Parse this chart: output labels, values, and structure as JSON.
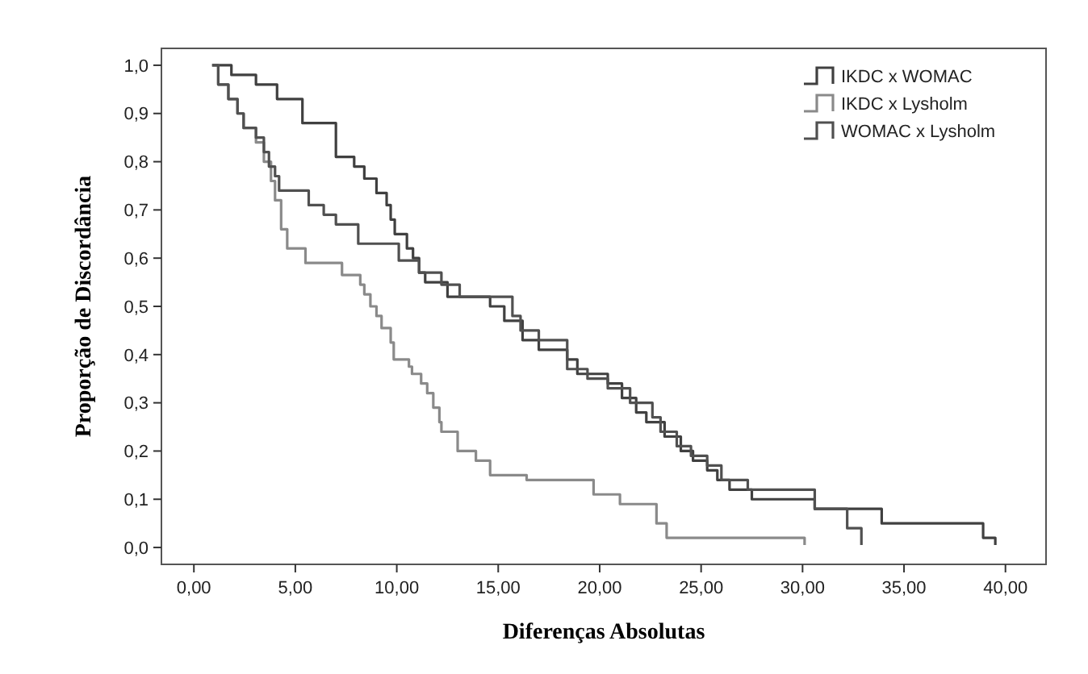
{
  "chart_data": {
    "type": "step",
    "xlabel": "Diferenças Absolutas",
    "ylabel": "Proporção de Discordância",
    "xlim": [
      -1.6,
      42
    ],
    "ylim": [
      -0.035,
      1.035
    ],
    "xticks": [
      {
        "value": 0,
        "label": "0,00"
      },
      {
        "value": 5,
        "label": "5,00"
      },
      {
        "value": 10,
        "label": "10,00"
      },
      {
        "value": 15,
        "label": "15,00"
      },
      {
        "value": 20,
        "label": "20,00"
      },
      {
        "value": 25,
        "label": "25,00"
      },
      {
        "value": 30,
        "label": "30,00"
      },
      {
        "value": 35,
        "label": "35,00"
      },
      {
        "value": 40,
        "label": "40,00"
      }
    ],
    "yticks": [
      {
        "value": 0,
        "label": "0,0"
      },
      {
        "value": 0.1,
        "label": "0,1"
      },
      {
        "value": 0.2,
        "label": "0,2"
      },
      {
        "value": 0.3,
        "label": "0,3"
      },
      {
        "value": 0.4,
        "label": "0,4"
      },
      {
        "value": 0.5,
        "label": "0,5"
      },
      {
        "value": 0.6,
        "label": "0,6"
      },
      {
        "value": 0.7,
        "label": "0,7"
      },
      {
        "value": 0.8,
        "label": "0,8"
      },
      {
        "value": 0.9,
        "label": "0,9"
      },
      {
        "value": 1,
        "label": "1,0"
      }
    ],
    "grid": false,
    "legend": "top right",
    "line_style": "solid",
    "marker": "none",
    "series": [
      {
        "name": "IKDC x WOMAC",
        "color": "#404040",
        "x": [
          0.9,
          1.85,
          3.06,
          4.1,
          5.35,
          7.0,
          7.9,
          8.4,
          9.0,
          9.5,
          9.7,
          9.9,
          10.5,
          10.8,
          11.1,
          11.4,
          12.5,
          14.6,
          15.3,
          16.2,
          17.0,
          18.4,
          18.9,
          20.4,
          21.1,
          21.8,
          22.3,
          23.2,
          24.0,
          24.6,
          25.3,
          25.8,
          26.4,
          27.5,
          30.6,
          33.9,
          38.9,
          39.5
        ],
        "values": [
          1.0,
          0.98,
          0.96,
          0.93,
          0.88,
          0.81,
          0.79,
          0.765,
          0.735,
          0.71,
          0.68,
          0.65,
          0.62,
          0.6,
          0.57,
          0.55,
          0.52,
          0.5,
          0.47,
          0.43,
          0.41,
          0.39,
          0.36,
          0.34,
          0.31,
          0.28,
          0.26,
          0.23,
          0.2,
          0.18,
          0.16,
          0.14,
          0.12,
          0.1,
          0.08,
          0.05,
          0.02,
          0.005
        ]
      },
      {
        "name": "IKDC x Lysholm",
        "color": "#8a8a8a",
        "x": [
          0.9,
          1.2,
          1.7,
          2.15,
          2.45,
          3.06,
          3.45,
          3.8,
          4.0,
          4.3,
          4.6,
          5.5,
          7.3,
          8.2,
          8.4,
          8.7,
          9.0,
          9.25,
          9.7,
          9.85,
          10.6,
          10.75,
          11.2,
          11.5,
          11.8,
          12.1,
          12.2,
          13.0,
          13.9,
          14.6,
          16.4,
          19.7,
          21.0,
          22.8,
          23.3,
          30.1
        ],
        "values": [
          1.0,
          0.96,
          0.93,
          0.9,
          0.87,
          0.84,
          0.8,
          0.76,
          0.72,
          0.66,
          0.62,
          0.59,
          0.565,
          0.545,
          0.525,
          0.5,
          0.48,
          0.455,
          0.425,
          0.39,
          0.375,
          0.36,
          0.34,
          0.32,
          0.29,
          0.26,
          0.24,
          0.2,
          0.18,
          0.15,
          0.14,
          0.11,
          0.09,
          0.05,
          0.02,
          0.005
        ]
      },
      {
        "name": "WOMAC x Lysholm",
        "color": "#505050",
        "x": [
          0.9,
          1.2,
          1.7,
          2.15,
          2.45,
          3.06,
          3.45,
          3.7,
          4.0,
          4.2,
          5.66,
          6.4,
          7.0,
          8.1,
          10.1,
          11.1,
          12.2,
          13.1,
          15.7,
          16.1,
          17.0,
          18.4,
          19.4,
          20.4,
          21.5,
          22.6,
          23.0,
          23.8,
          24.5,
          25.3,
          26.0,
          27.3,
          30.6,
          32.2,
          32.9
        ],
        "values": [
          1.0,
          0.96,
          0.93,
          0.9,
          0.87,
          0.85,
          0.82,
          0.79,
          0.77,
          0.74,
          0.71,
          0.69,
          0.67,
          0.63,
          0.595,
          0.57,
          0.545,
          0.52,
          0.48,
          0.45,
          0.43,
          0.37,
          0.35,
          0.33,
          0.3,
          0.27,
          0.24,
          0.21,
          0.19,
          0.17,
          0.14,
          0.12,
          0.08,
          0.04,
          0.005
        ]
      }
    ]
  }
}
